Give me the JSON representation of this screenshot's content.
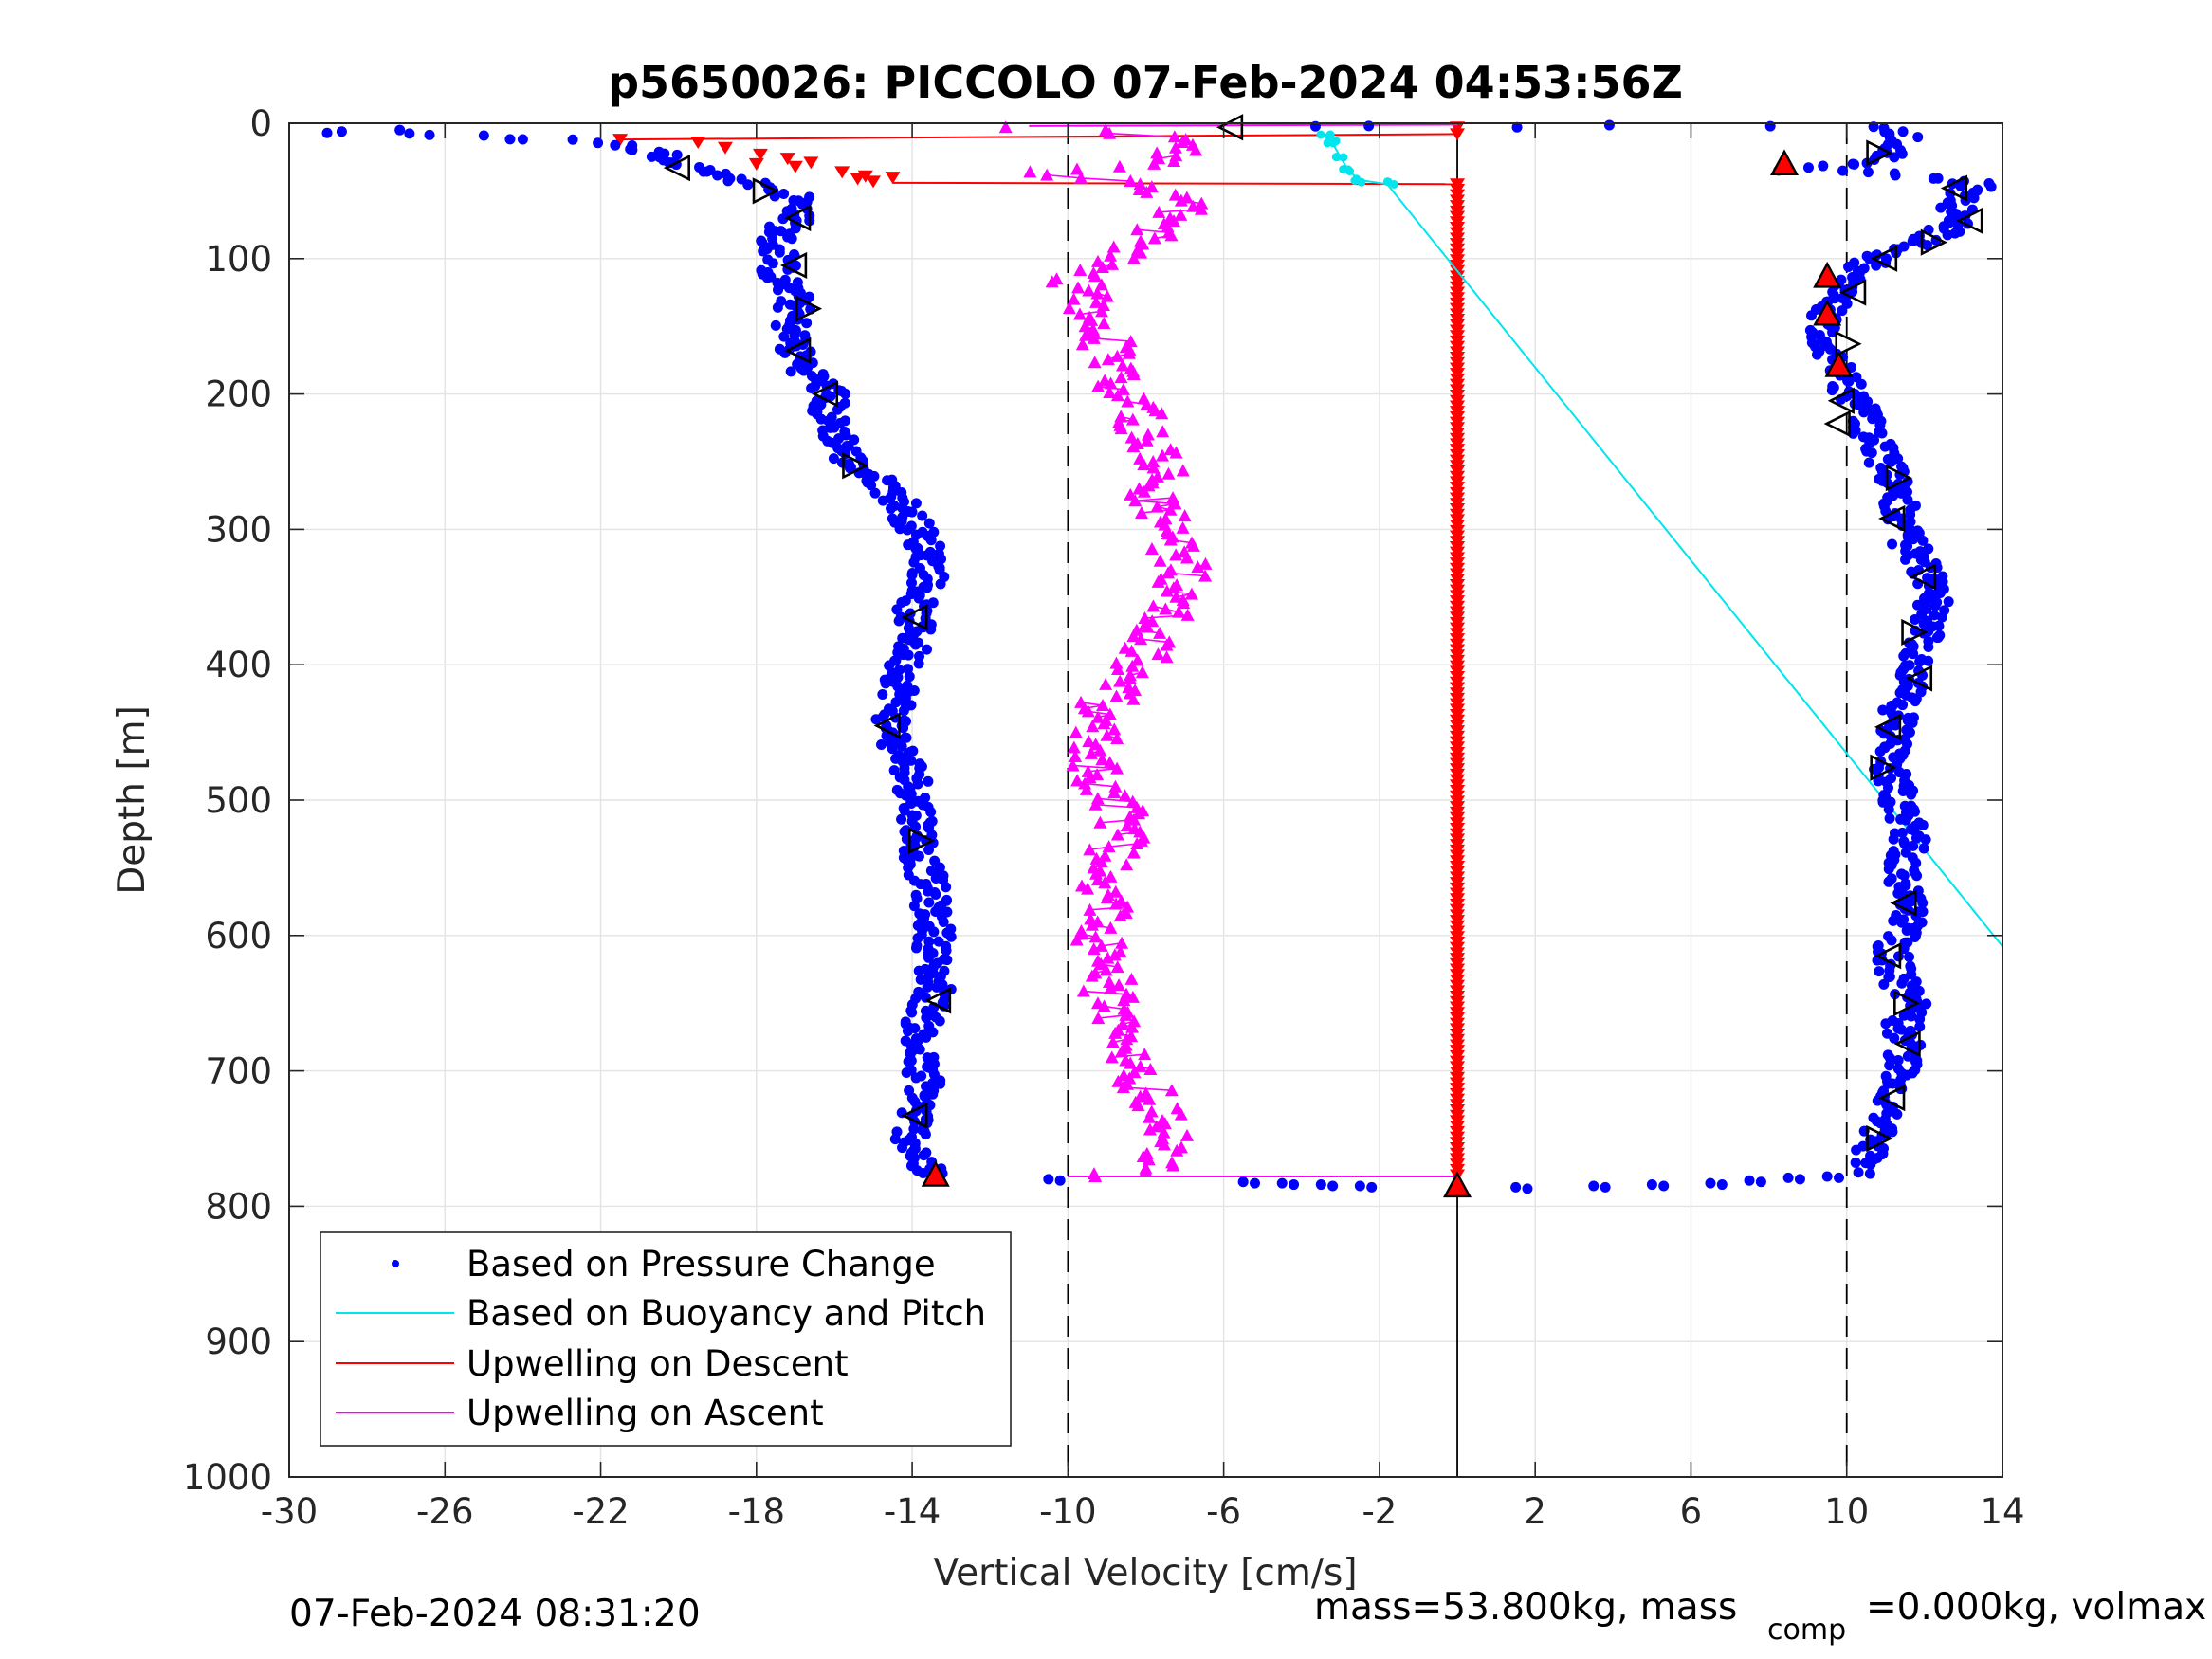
{
  "chart_data": {
    "type": "scatter",
    "title": "p5650026: PICCOLO 07-Feb-2024 04:53:56Z",
    "xlabel": "Vertical Velocity [cm/s]",
    "ylabel": "Depth [m]",
    "xlim": [
      -30,
      14
    ],
    "ylim": [
      0,
      1000
    ],
    "y_reversed": true,
    "grid": true,
    "x_ticks": [
      -30,
      -26,
      -22,
      -18,
      -14,
      -10,
      -6,
      -2,
      2,
      6,
      10,
      14
    ],
    "y_ticks": [
      0,
      100,
      200,
      300,
      400,
      500,
      600,
      700,
      800,
      900,
      1000
    ],
    "reference_lines": [
      {
        "x": -10,
        "style": "dashed"
      },
      {
        "x": 0,
        "style": "solid"
      },
      {
        "x": 10,
        "style": "dashed"
      }
    ],
    "legend_position": "bottom-left",
    "series": [
      {
        "name": "Based on Pressure Change",
        "color": "#0000ff",
        "marker": "dot",
        "descent_profile": [
          [
            -29.4,
            8
          ],
          [
            -27.5,
            6
          ],
          [
            -24.5,
            11
          ],
          [
            -22.8,
            13
          ],
          [
            -21.5,
            16
          ],
          [
            -20.5,
            22
          ],
          [
            -19.8,
            30
          ],
          [
            -19.0,
            38
          ],
          [
            -18.3,
            43
          ],
          [
            -17.6,
            48
          ],
          [
            -17.0,
            55
          ],
          [
            -16.8,
            65
          ],
          [
            -17.2,
            75
          ],
          [
            -17.6,
            90
          ],
          [
            -17.3,
            100
          ],
          [
            -17.5,
            110
          ],
          [
            -17.0,
            130
          ],
          [
            -17.1,
            150
          ],
          [
            -17.0,
            170
          ],
          [
            -16.6,
            185
          ],
          [
            -16.1,
            200
          ],
          [
            -16.2,
            215
          ],
          [
            -15.8,
            235
          ],
          [
            -15.6,
            250
          ],
          [
            -14.8,
            265
          ],
          [
            -14.3,
            280
          ],
          [
            -13.9,
            300
          ],
          [
            -13.5,
            320
          ],
          [
            -13.6,
            340
          ],
          [
            -14.0,
            360
          ],
          [
            -13.9,
            380
          ],
          [
            -14.2,
            400
          ],
          [
            -14.3,
            420
          ],
          [
            -14.5,
            440
          ],
          [
            -14.4,
            460
          ],
          [
            -14.0,
            480
          ],
          [
            -13.9,
            500
          ],
          [
            -13.8,
            520
          ],
          [
            -13.8,
            540
          ],
          [
            -13.6,
            560
          ],
          [
            -13.5,
            580
          ],
          [
            -13.4,
            600
          ],
          [
            -13.5,
            620
          ],
          [
            -13.4,
            640
          ],
          [
            -13.7,
            660
          ],
          [
            -13.9,
            680
          ],
          [
            -13.8,
            700
          ],
          [
            -13.6,
            710
          ],
          [
            -13.9,
            730
          ],
          [
            -14.0,
            750
          ],
          [
            -13.8,
            765
          ],
          [
            -13.6,
            778
          ]
        ],
        "bottom_profile": [
          [
            -10.5,
            780
          ],
          [
            -5.5,
            782
          ],
          [
            -4.5,
            783
          ],
          [
            -3.5,
            784
          ],
          [
            -2.5,
            785
          ],
          [
            1.5,
            786
          ],
          [
            3.5,
            785
          ],
          [
            5.0,
            784
          ],
          [
            6.5,
            783
          ],
          [
            7.5,
            781
          ],
          [
            8.5,
            779
          ],
          [
            9.5,
            778
          ],
          [
            10.3,
            775
          ]
        ],
        "ascent_profile": [
          [
            10.5,
            770
          ],
          [
            10.7,
            750
          ],
          [
            11.0,
            730
          ],
          [
            11.4,
            710
          ],
          [
            11.5,
            690
          ],
          [
            11.4,
            670
          ],
          [
            11.6,
            650
          ],
          [
            11.3,
            630
          ],
          [
            11.1,
            610
          ],
          [
            11.6,
            590
          ],
          [
            11.5,
            570
          ],
          [
            11.5,
            550
          ],
          [
            11.6,
            530
          ],
          [
            11.5,
            510
          ],
          [
            11.2,
            490
          ],
          [
            11.0,
            470
          ],
          [
            11.2,
            450
          ],
          [
            11.4,
            430
          ],
          [
            11.7,
            410
          ],
          [
            11.9,
            390
          ],
          [
            12.1,
            370
          ],
          [
            12.2,
            350
          ],
          [
            12.0,
            330
          ],
          [
            11.6,
            310
          ],
          [
            11.4,
            290
          ],
          [
            11.3,
            270
          ],
          [
            11.0,
            250
          ],
          [
            10.6,
            230
          ],
          [
            10.3,
            210
          ],
          [
            9.9,
            190
          ],
          [
            9.6,
            170
          ],
          [
            9.5,
            150
          ],
          [
            9.6,
            130
          ],
          [
            9.9,
            115
          ],
          [
            10.8,
            100
          ],
          [
            11.8,
            90
          ],
          [
            12.5,
            80
          ],
          [
            12.8,
            70
          ],
          [
            12.9,
            55
          ],
          [
            13.4,
            45
          ],
          [
            12.0,
            40
          ],
          [
            11.0,
            38
          ],
          [
            9.5,
            36
          ],
          [
            8.0,
            35
          ],
          [
            10.5,
            30
          ],
          [
            11.2,
            22
          ],
          [
            11.5,
            15
          ],
          [
            11.3,
            8
          ],
          [
            11.0,
            3
          ],
          [
            4.2,
            1
          ],
          [
            1.5,
            2
          ],
          [
            -2.0,
            2
          ],
          [
            -4.0,
            2
          ]
        ]
      },
      {
        "name": "Based on Buoyancy and Pitch",
        "color": "#00e5ee",
        "marker": "line",
        "points": [
          [
            -3.4,
            10
          ],
          [
            -3.2,
            15
          ],
          [
            -3.0,
            25
          ],
          [
            -2.8,
            35
          ],
          [
            -2.5,
            42
          ],
          [
            -1.8,
            45
          ],
          [
            14.0,
            608
          ]
        ]
      },
      {
        "name": "Upwelling on Descent",
        "color": "#ff0000",
        "marker": "down-triangle",
        "surface_points": [
          [
            -21.5,
            12
          ],
          [
            -19.5,
            14
          ],
          [
            -18.8,
            18
          ],
          [
            -17.9,
            23
          ],
          [
            -17.2,
            26
          ],
          [
            -16.6,
            29
          ],
          [
            -18.0,
            30
          ],
          [
            -17.0,
            32
          ],
          [
            -15.8,
            36
          ],
          [
            -15.2,
            39
          ],
          [
            -14.5,
            40
          ],
          [
            -15.4,
            41
          ],
          [
            -15.0,
            43
          ],
          [
            0,
            8
          ],
          [
            0,
            3
          ]
        ],
        "depth_range": [
          45,
          780
        ],
        "x_value": 0,
        "connectors": [
          [
            -21.5,
            12,
            0,
            8
          ],
          [
            -14.5,
            44,
            0,
            45
          ]
        ]
      },
      {
        "name": "Upwelling on Ascent",
        "color": "#ff00ff",
        "marker": "up-triangle",
        "profile": [
          [
            -9.5,
            778
          ],
          [
            -7.8,
            770
          ],
          [
            -7.4,
            750
          ],
          [
            -7.6,
            730
          ],
          [
            -8.0,
            710
          ],
          [
            -8.6,
            690
          ],
          [
            -8.8,
            670
          ],
          [
            -9.0,
            650
          ],
          [
            -8.9,
            630
          ],
          [
            -9.1,
            610
          ],
          [
            -9.2,
            590
          ],
          [
            -9.0,
            570
          ],
          [
            -9.1,
            550
          ],
          [
            -8.7,
            530
          ],
          [
            -8.6,
            510
          ],
          [
            -9.2,
            490
          ],
          [
            -9.3,
            470
          ],
          [
            -9.4,
            450
          ],
          [
            -9.1,
            430
          ],
          [
            -8.4,
            410
          ],
          [
            -8.0,
            390
          ],
          [
            -7.6,
            370
          ],
          [
            -7.2,
            350
          ],
          [
            -7.0,
            330
          ],
          [
            -7.3,
            310
          ],
          [
            -7.6,
            290
          ],
          [
            -7.8,
            270
          ],
          [
            -7.5,
            250
          ],
          [
            -7.9,
            230
          ],
          [
            -8.3,
            210
          ],
          [
            -8.7,
            190
          ],
          [
            -8.9,
            170
          ],
          [
            -9.2,
            150
          ],
          [
            -9.6,
            130
          ],
          [
            -9.8,
            115
          ],
          [
            -8.9,
            100
          ],
          [
            -8.0,
            85
          ],
          [
            -7.2,
            70
          ],
          [
            -6.8,
            55
          ],
          [
            -8.5,
            45
          ],
          [
            -10.5,
            36
          ],
          [
            -7.5,
            30
          ],
          [
            -7.0,
            20
          ],
          [
            -7.6,
            10
          ],
          [
            -9.0,
            5
          ],
          [
            -11.0,
            3
          ]
        ],
        "connectors": [
          [
            -11.0,
            2,
            0,
            1
          ],
          [
            -10.0,
            778,
            0,
            778
          ]
        ]
      }
    ],
    "start_marker": {
      "x": -5.8,
      "y": 3,
      "shape": "left-triangle"
    },
    "open_triangle_markers": [
      [
        -20.0,
        33
      ],
      [
        -17.8,
        50
      ],
      [
        -16.9,
        70
      ],
      [
        -17.0,
        105
      ],
      [
        -16.7,
        137
      ],
      [
        -16.9,
        168
      ],
      [
        -16.2,
        200
      ],
      [
        -15.5,
        253
      ],
      [
        -13.9,
        365
      ],
      [
        -14.6,
        445
      ],
      [
        -13.8,
        530
      ],
      [
        -13.3,
        648
      ],
      [
        -13.9,
        733
      ],
      [
        10.8,
        22
      ],
      [
        12.8,
        48
      ],
      [
        13.2,
        72
      ],
      [
        12.2,
        88
      ],
      [
        11.0,
        100
      ],
      [
        10.2,
        125
      ],
      [
        10.0,
        163
      ],
      [
        9.9,
        205
      ],
      [
        9.8,
        222
      ],
      [
        11.3,
        262
      ],
      [
        11.2,
        292
      ],
      [
        12.0,
        335
      ],
      [
        11.7,
        376
      ],
      [
        11.9,
        410
      ],
      [
        11.1,
        446
      ],
      [
        10.9,
        476
      ],
      [
        11.5,
        576
      ],
      [
        11.1,
        615
      ],
      [
        11.5,
        650
      ],
      [
        11.6,
        680
      ],
      [
        11.2,
        720
      ],
      [
        10.8,
        750
      ]
    ],
    "red_triangle_markers": [
      [
        -13.4,
        777
      ],
      [
        8.4,
        30
      ],
      [
        9.5,
        113
      ],
      [
        9.5,
        141
      ],
      [
        9.8,
        179
      ],
      [
        0,
        785
      ]
    ],
    "bottom_left_timestamp": "07-Feb-2024 08:31:20",
    "footer_main": "mass=53.800kg, mass",
    "footer_sub": "comp",
    "footer_tail": "=0.000kg, volmax"
  }
}
